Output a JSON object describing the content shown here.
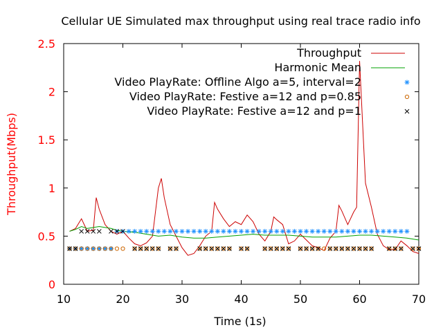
{
  "chart_data": {
    "type": "line",
    "title": "Cellular UE Simulated max throughput using real trace radio info",
    "xlabel": "Time (1s)",
    "ylabel": "Throughput(Mbps)",
    "xlim": [
      10,
      70
    ],
    "ylim": [
      0,
      2.5
    ],
    "x_ticks": [
      "10",
      "20",
      "30",
      "40",
      "50",
      "60",
      "70"
    ],
    "y_ticks": [
      "0",
      "0.5",
      "1",
      "1.5",
      "2",
      "2.5"
    ],
    "grid": false,
    "legend_position": "top-right",
    "colors": {
      "throughput": "#cc0000",
      "harmonic": "#00a000",
      "offline": "#1e90ff",
      "festive85": "#cc6600",
      "festive1": "#000000",
      "ylabel": "#ff0000",
      "ytick": "#ff0000"
    },
    "series": [
      {
        "name": "Throughput",
        "style": "line",
        "color": "#cc0000",
        "x": [
          11,
          12,
          13,
          14,
          15,
          15.5,
          16,
          17,
          18,
          19,
          20,
          21,
          22,
          23,
          24,
          25,
          26,
          26.5,
          27,
          28,
          29,
          30,
          31,
          32,
          33,
          34,
          35,
          35.5,
          36,
          37,
          38,
          39,
          40,
          41,
          42,
          43,
          44,
          45,
          45.5,
          46,
          47,
          48,
          49,
          50,
          51,
          52,
          53,
          54,
          55,
          56,
          56.5,
          57,
          58,
          59,
          59.5,
          60,
          61,
          62,
          63,
          64,
          65,
          66,
          67,
          68,
          69,
          70
        ],
        "y": [
          0.55,
          0.58,
          0.68,
          0.55,
          0.56,
          0.9,
          0.78,
          0.62,
          0.55,
          0.52,
          0.55,
          0.48,
          0.42,
          0.4,
          0.43,
          0.5,
          1.0,
          1.1,
          0.9,
          0.62,
          0.5,
          0.38,
          0.3,
          0.32,
          0.4,
          0.5,
          0.55,
          0.85,
          0.78,
          0.68,
          0.6,
          0.65,
          0.62,
          0.72,
          0.65,
          0.52,
          0.45,
          0.55,
          0.7,
          0.67,
          0.62,
          0.42,
          0.45,
          0.52,
          0.46,
          0.4,
          0.38,
          0.35,
          0.48,
          0.55,
          0.82,
          0.76,
          0.62,
          0.75,
          0.8,
          2.32,
          1.05,
          0.8,
          0.52,
          0.4,
          0.36,
          0.36,
          0.45,
          0.4,
          0.34,
          0.32
        ]
      },
      {
        "name": "Harmonic Mean",
        "style": "line",
        "color": "#00a000",
        "x": [
          11,
          12,
          13,
          14,
          15,
          16,
          17,
          18,
          19,
          20,
          22,
          24,
          26,
          28,
          30,
          32,
          34,
          36,
          38,
          40,
          42,
          44,
          46,
          48,
          50,
          52,
          54,
          56,
          58,
          60,
          62,
          64,
          66,
          68,
          70
        ],
        "y": [
          0.55,
          0.57,
          0.6,
          0.58,
          0.59,
          0.6,
          0.59,
          0.58,
          0.56,
          0.55,
          0.54,
          0.52,
          0.5,
          0.51,
          0.49,
          0.48,
          0.48,
          0.49,
          0.5,
          0.51,
          0.52,
          0.51,
          0.51,
          0.51,
          0.5,
          0.49,
          0.49,
          0.49,
          0.5,
          0.51,
          0.51,
          0.5,
          0.49,
          0.48,
          0.46
        ]
      },
      {
        "name": "Video PlayRate: Offline Algo a=5, interval=2",
        "style": "marker",
        "marker": "asterisk",
        "color": "#1e90ff",
        "x": [
          11,
          12,
          13,
          14,
          15,
          16,
          17,
          18,
          19,
          20,
          21,
          22,
          23,
          24,
          25,
          26,
          27,
          28,
          29,
          30,
          31,
          32,
          33,
          34,
          35,
          36,
          37,
          38,
          39,
          40,
          41,
          42,
          43,
          44,
          45,
          46,
          47,
          48,
          49,
          50,
          51,
          52,
          53,
          54,
          55,
          56,
          57,
          58,
          59,
          60,
          61,
          62,
          63,
          64,
          65,
          66,
          67,
          68
        ],
        "y": [
          0.37,
          0.37,
          0.37,
          0.37,
          0.37,
          0.37,
          0.37,
          0.37,
          0.55,
          0.55,
          0.55,
          0.55,
          0.55,
          0.55,
          0.55,
          0.55,
          0.55,
          0.55,
          0.55,
          0.55,
          0.55,
          0.55,
          0.55,
          0.55,
          0.55,
          0.55,
          0.55,
          0.55,
          0.55,
          0.55,
          0.55,
          0.55,
          0.55,
          0.55,
          0.55,
          0.55,
          0.55,
          0.55,
          0.55,
          0.55,
          0.55,
          0.55,
          0.55,
          0.55,
          0.55,
          0.55,
          0.55,
          0.55,
          0.55,
          0.55,
          0.55,
          0.55,
          0.55,
          0.55,
          0.55,
          0.55,
          0.55,
          0.55
        ]
      },
      {
        "name": "Video PlayRate: Festive a=12 and p=0.85",
        "style": "marker",
        "marker": "circle",
        "color": "#cc6600",
        "x": [
          11,
          12,
          13,
          14,
          15,
          16,
          17,
          18,
          19,
          20,
          22,
          23,
          24,
          25,
          26,
          28,
          29,
          33,
          34,
          35,
          36,
          37,
          38,
          40,
          41,
          44,
          45,
          46,
          47,
          48,
          50,
          51,
          52,
          53,
          54,
          55,
          56,
          57,
          58,
          59,
          60,
          61,
          62,
          65,
          66,
          67,
          69,
          70
        ],
        "y": [
          0.37,
          0.37,
          0.37,
          0.37,
          0.37,
          0.37,
          0.37,
          0.37,
          0.37,
          0.37,
          0.37,
          0.37,
          0.37,
          0.37,
          0.37,
          0.37,
          0.37,
          0.37,
          0.37,
          0.37,
          0.37,
          0.37,
          0.37,
          0.37,
          0.37,
          0.37,
          0.37,
          0.37,
          0.37,
          0.37,
          0.37,
          0.37,
          0.37,
          0.37,
          0.37,
          0.37,
          0.37,
          0.37,
          0.37,
          0.37,
          0.37,
          0.37,
          0.37,
          0.37,
          0.37,
          0.37,
          0.37,
          0.37
        ]
      },
      {
        "name": "Video PlayRate: Festive a=12 and p=1",
        "style": "marker",
        "marker": "cross",
        "color": "#000000",
        "x": [
          11,
          12,
          13,
          14,
          15,
          16,
          18,
          19,
          20,
          22,
          23,
          24,
          25,
          26,
          28,
          29,
          33,
          34,
          35,
          36,
          37,
          38,
          40,
          41,
          44,
          45,
          46,
          47,
          48,
          50,
          51,
          52,
          53,
          55,
          56,
          57,
          58,
          59,
          60,
          61,
          62,
          65,
          66,
          67,
          69,
          70
        ],
        "y": [
          0.37,
          0.37,
          0.55,
          0.55,
          0.55,
          0.55,
          0.55,
          0.55,
          0.55,
          0.37,
          0.37,
          0.37,
          0.37,
          0.37,
          0.37,
          0.37,
          0.37,
          0.37,
          0.37,
          0.37,
          0.37,
          0.37,
          0.37,
          0.37,
          0.37,
          0.37,
          0.37,
          0.37,
          0.37,
          0.37,
          0.37,
          0.37,
          0.37,
          0.37,
          0.37,
          0.37,
          0.37,
          0.37,
          0.37,
          0.37,
          0.37,
          0.37,
          0.37,
          0.37,
          0.37,
          0.37
        ]
      }
    ]
  }
}
